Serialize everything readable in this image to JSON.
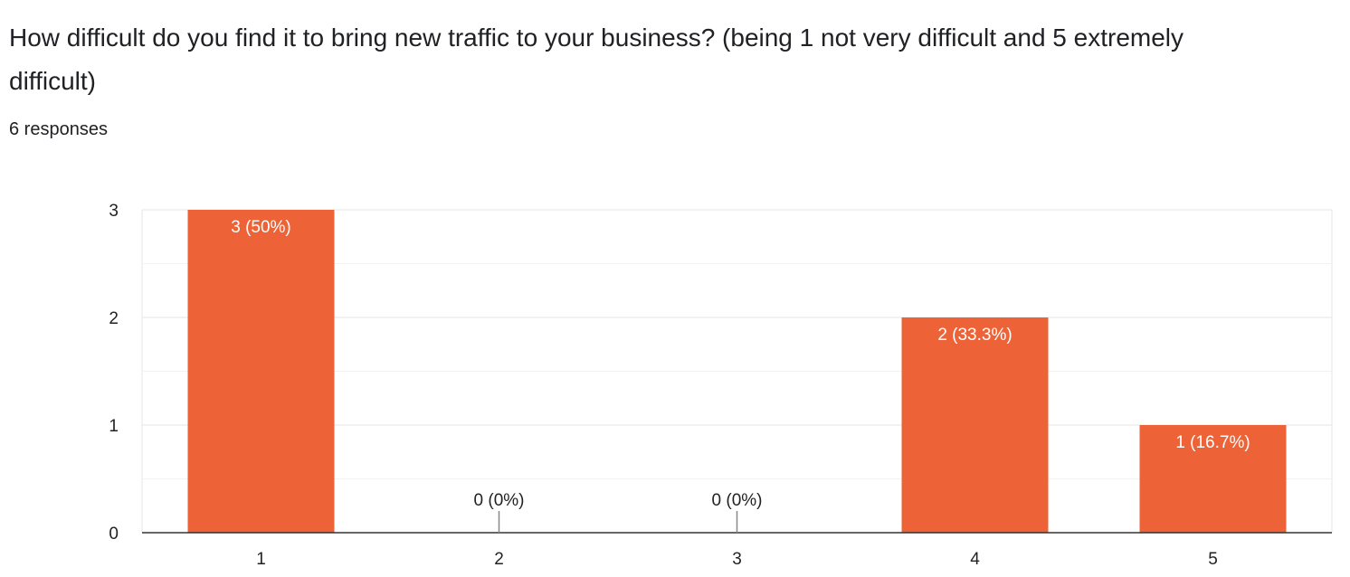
{
  "question": "How difficult do you find it to bring new traffic to your business? (being 1 not very difficult and 5 extremely difficult)",
  "responses": "6 responses",
  "colors": {
    "bar": "#ED6337",
    "grid": "#e6e6e6",
    "minor_grid": "#f2f2f2",
    "axis": "#333333"
  },
  "chart_data": {
    "type": "bar",
    "categories": [
      "1",
      "2",
      "3",
      "4",
      "5"
    ],
    "values": [
      3,
      0,
      0,
      2,
      1
    ],
    "labels": [
      "3 (50%)",
      "0 (0%)",
      "0 (0%)",
      "2 (33.3%)",
      "1 (16.7%)"
    ],
    "yticks": [
      "0",
      "1",
      "2",
      "3"
    ],
    "ylim": [
      0,
      3
    ],
    "grid": true
  }
}
